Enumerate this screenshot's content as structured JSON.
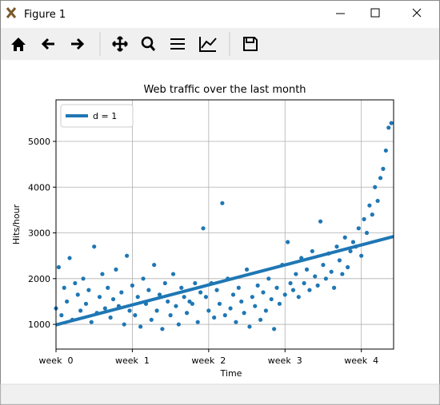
{
  "window": {
    "title": "Figure 1"
  },
  "chart_data": {
    "type": "scatter",
    "title": "Web traffic over the last month",
    "xlabel": "Time",
    "ylabel": "Hits/hour",
    "xlim": [
      0,
      743
    ],
    "ylim": [
      460,
      5908
    ],
    "xticks": [
      {
        "value": 0,
        "label": "week  0"
      },
      {
        "value": 168,
        "label": "week  1"
      },
      {
        "value": 336,
        "label": "week  2"
      },
      {
        "value": 504,
        "label": "week  3"
      },
      {
        "value": 672,
        "label": "week  4"
      }
    ],
    "yticks": [
      1000,
      2000,
      3000,
      4000,
      5000
    ],
    "grid": true,
    "legend": "upper left",
    "series": [
      {
        "type": "scatter",
        "color": "#1f77b4",
        "x": [
          0,
          6,
          12,
          18,
          24,
          30,
          36,
          42,
          48,
          54,
          60,
          66,
          72,
          78,
          84,
          90,
          96,
          102,
          108,
          114,
          120,
          126,
          132,
          138,
          144,
          150,
          156,
          162,
          168,
          174,
          180,
          186,
          192,
          198,
          204,
          210,
          216,
          222,
          228,
          234,
          240,
          246,
          252,
          258,
          264,
          270,
          276,
          282,
          288,
          294,
          300,
          306,
          312,
          318,
          324,
          330,
          336,
          342,
          348,
          354,
          360,
          366,
          372,
          378,
          384,
          390,
          396,
          402,
          408,
          414,
          420,
          426,
          432,
          438,
          444,
          450,
          456,
          462,
          468,
          474,
          480,
          486,
          492,
          498,
          504,
          510,
          516,
          522,
          528,
          534,
          540,
          546,
          552,
          558,
          564,
          570,
          576,
          582,
          588,
          594,
          600,
          606,
          612,
          618,
          624,
          630,
          636,
          642,
          648,
          654,
          660,
          666,
          672,
          678,
          684,
          690,
          696,
          702,
          708,
          714,
          720,
          726,
          732,
          738
        ],
        "values": [
          1350,
          2250,
          1200,
          1800,
          1500,
          2450,
          1100,
          1900,
          1650,
          1300,
          2000,
          1450,
          1750,
          1050,
          2700,
          1250,
          1600,
          2100,
          1350,
          1800,
          1150,
          1550,
          2200,
          1400,
          1700,
          1000,
          2500,
          1300,
          1850,
          1200,
          1600,
          950,
          2000,
          1450,
          1750,
          1100,
          2300,
          1300,
          1650,
          900,
          1900,
          1500,
          1200,
          2100,
          1400,
          1000,
          1800,
          1600,
          1250,
          1500,
          1450,
          1900,
          1050,
          1700,
          3100,
          1600,
          1300,
          1900,
          1150,
          1750,
          1450,
          3650,
          1200,
          2000,
          1350,
          1650,
          1050,
          1800,
          1500,
          1250,
          2200,
          950,
          1600,
          1400,
          1850,
          1100,
          1700,
          1300,
          2000,
          1550,
          900,
          1800,
          1450,
          2300,
          1650,
          2800,
          1900,
          1750,
          2100,
          1600,
          2450,
          1900,
          2200,
          1750,
          2600,
          2050,
          1850,
          3250,
          2300,
          2000,
          2550,
          2150,
          1800,
          2700,
          2400,
          2100,
          2900,
          2250,
          2600,
          2800,
          2700,
          3100,
          2500,
          3300,
          3000,
          3600,
          3400,
          4000,
          3700,
          4200,
          4400,
          4800,
          5300,
          5400
        ]
      },
      {
        "name": "d = 1",
        "type": "line",
        "color": "#1f77b4",
        "x": [
          0,
          743
        ],
        "values": [
          990,
          2920
        ]
      }
    ]
  }
}
